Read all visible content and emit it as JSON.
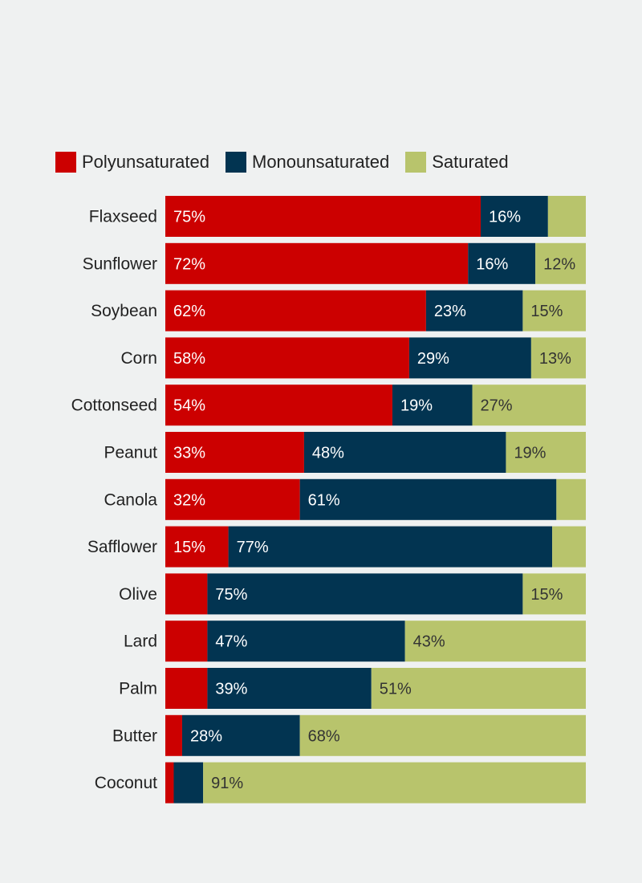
{
  "chart_data": {
    "type": "bar",
    "orientation": "horizontal",
    "stacked": true,
    "normalized": true,
    "legend_position": "top-left",
    "categories": [
      "Flaxseed",
      "Sunflower",
      "Soybean",
      "Corn",
      "Cottonseed",
      "Peanut",
      "Canola",
      "Safflower",
      "Olive",
      "Lard",
      "Palm",
      "Butter",
      "Coconut"
    ],
    "series": [
      {
        "name": "Polyunsaturated",
        "color": "#cc0000",
        "text_color": "#ffffff",
        "values": [
          75,
          72,
          62,
          58,
          54,
          33,
          32,
          15,
          10,
          10,
          10,
          4,
          2
        ],
        "labels": [
          "75%",
          "72%",
          "62%",
          "58%",
          "54%",
          "33%",
          "32%",
          "15%",
          "",
          "",
          "",
          "",
          ""
        ]
      },
      {
        "name": "Monounsaturated",
        "color": "#023451",
        "text_color": "#ffffff",
        "values": [
          16,
          16,
          23,
          29,
          19,
          48,
          61,
          77,
          75,
          47,
          39,
          28,
          7
        ],
        "labels": [
          "16%",
          "16%",
          "23%",
          "29%",
          "19%",
          "48%",
          "61%",
          "77%",
          "75%",
          "47%",
          "39%",
          "28%",
          ""
        ]
      },
      {
        "name": "Saturated",
        "color": "#b8c46c",
        "text_color": "#333333",
        "values": [
          9,
          12,
          15,
          13,
          27,
          19,
          7,
          8,
          15,
          43,
          51,
          68,
          91
        ],
        "labels": [
          "",
          "12%",
          "15%",
          "13%",
          "27%",
          "19%",
          "",
          "",
          "15%",
          "43%",
          "51%",
          "68%",
          "91%"
        ]
      }
    ],
    "xlim": [
      0,
      100
    ],
    "grid": false
  }
}
